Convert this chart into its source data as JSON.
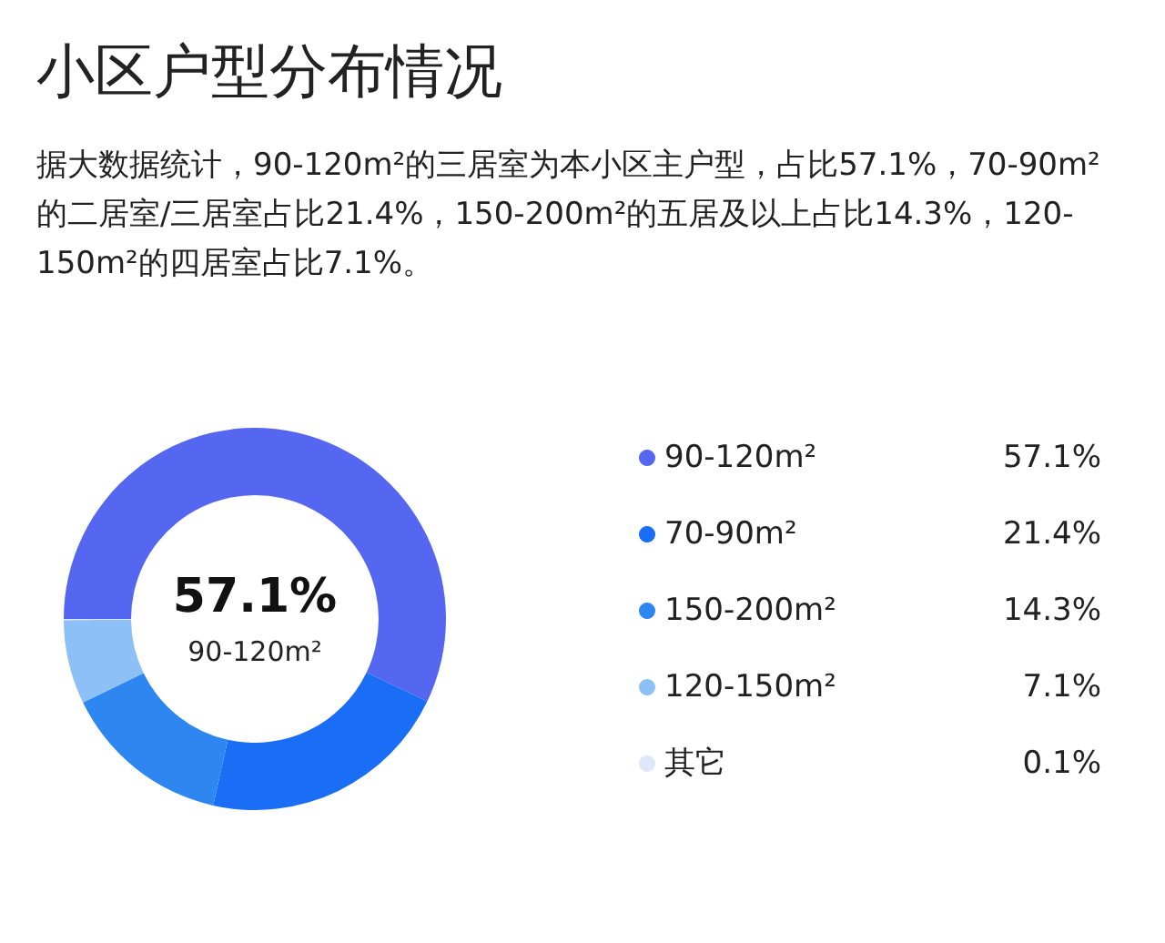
{
  "chart_data": {
    "type": "donut",
    "title": "小区户型分布情况",
    "subtitle": "据大数据统计，90-120m²的三居室为本小区主户型，占比57.1%，70-90m²的二居室/三居室占比21.4%，150-200m²的五居及以上占比14.3%，120-150m²的四居室占比7.1%。",
    "categories": [
      "90-120m²",
      "70-90m²",
      "150-200m²",
      "120-150m²",
      "其它"
    ],
    "values": [
      57.1,
      21.4,
      14.3,
      7.1,
      0.1
    ],
    "colors": [
      "#5566f0",
      "#1a6ef5",
      "#2e86f0",
      "#8ec0f8",
      "#dde8f8"
    ],
    "value_labels": [
      "57.1%",
      "21.4%",
      "14.3%",
      "7.1%",
      "0.1%"
    ],
    "legend": "right"
  }
}
